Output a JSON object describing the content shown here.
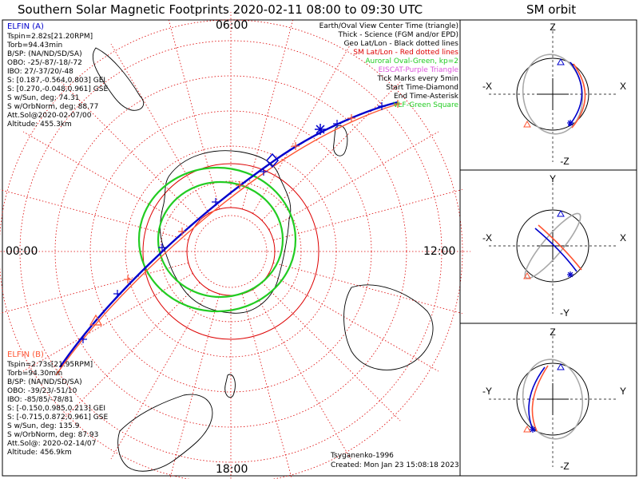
{
  "title": "Southern Solar Magnetic Footprints 2020-02-11 08:00 to 09:30 UTC",
  "sm_orbit_title": "SM orbit",
  "colors": {
    "elfin_a": "#0000cc",
    "elfin_b": "#ff5533",
    "grid": "#dd0000",
    "auroral_oval": "#22cc22",
    "eiscat": "#dd55dd",
    "land": "#000000",
    "orbit_gray": "#a8a8a8"
  },
  "map": {
    "time_labels": {
      "top": "06:00",
      "left": "00:00",
      "right": "12:00",
      "bottom": "18:00"
    },
    "legend": [
      {
        "text": "Earth/Oval View Center Time (triangle)",
        "color": "#000000"
      },
      {
        "text": "Thick - Science (FGM and/or EPD)",
        "color": "#000000"
      },
      {
        "text": "Geo Lat/Lon - Black dotted lines",
        "color": "#000000"
      },
      {
        "text": "SM Lat/Lon - Red dotted lines",
        "color": "#dd0000"
      },
      {
        "text": "Auroral Oval-Green, kp=2",
        "color": "#22cc22"
      },
      {
        "text": "EISCAT-Purple Triangle",
        "color": "#dd55dd"
      },
      {
        "text": "Tick Marks every 5min",
        "color": "#000000"
      },
      {
        "text": "Start Time-Diamond",
        "color": "#000000"
      },
      {
        "text": "End Time-Asterisk",
        "color": "#000000"
      },
      {
        "text": "VLF-Green Square",
        "color": "#22cc22"
      }
    ],
    "elfin_a_info": {
      "name": "ELFIN (A)",
      "lines": [
        "Tspin=2.82s[21.20RPM]",
        "Torb=94.43min",
        "B/SP: (NA/ND/SD/SA)",
        "OBO: -25/-87/-18/-72",
        "IBO: 27/-37/20/-48",
        "S: [0.187,-0.564,0.803] GEI",
        "S: [0.270,-0.048,0.961] GSE",
        "S w/Sun, deg: 74.31",
        "S w/OrbNorm, deg: 88.77",
        "Att.Sol@2020-02-07/00",
        "Altitude: 455.3km"
      ]
    },
    "elfin_b_info": {
      "name": "ELFIN (B)",
      "lines": [
        "Tspin=2.73s[21.95RPM]",
        "Torb=94.30min",
        "B/SP: (NA/ND/SD/SA)",
        "OBO: -39/23/-51/10",
        "IBO: -85/85/-78/81",
        "S: [-0.150,0.985,0.213] GEI",
        "S: [-0.715,0.872,0.961] GSE",
        "S w/Sun, deg: 135.9",
        "S w/OrbNorm, deg: 87.93",
        "Att.Sol@: 2020-02-14/07",
        "Altitude: 456.9km"
      ]
    },
    "credit": "Tsyganenko-1996",
    "created": "Created: Mon Jan 23 15:08:18 2023"
  },
  "sm_panels": [
    {
      "top": "Z",
      "bottom": "-Z",
      "left": "-X",
      "right": "X"
    },
    {
      "top": "Y",
      "bottom": "-Y",
      "left": "-X",
      "right": "X"
    },
    {
      "top": "Z",
      "bottom": "-Z",
      "left": "-Y",
      "right": "Y"
    }
  ],
  "chart_data": {
    "type": "scatter",
    "title": "Southern Solar Magnetic Footprints 2020-02-11 08:00 to 09:30 UTC",
    "series": [
      {
        "name": "ELFIN (A)",
        "color": "#0000cc"
      },
      {
        "name": "ELFIN (B)",
        "color": "#ff5533"
      }
    ],
    "time_range": [
      "2020-02-11 08:00",
      "2020-02-11 09:30"
    ],
    "auroral_oval_kp": 2
  }
}
